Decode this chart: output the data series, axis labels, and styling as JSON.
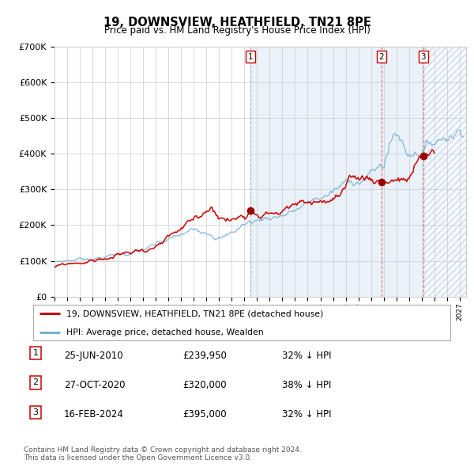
{
  "title": "19, DOWNSVIEW, HEATHFIELD, TN21 8PE",
  "subtitle": "Price paid vs. HM Land Registry's House Price Index (HPI)",
  "background_color": "#ffffff",
  "plot_bg_color": "#ffffff",
  "grid_color": "#cccccc",
  "hpi_color": "#7ab0d4",
  "price_color": "#cc0000",
  "sale_marker_color": "#990000",
  "sale1_date": 2010.49,
  "sale1_price": 239950,
  "sale2_date": 2020.83,
  "sale2_price": 320000,
  "sale3_date": 2024.12,
  "sale3_price": 395000,
  "shade_start": 2010.49,
  "shade_end": 2024.12,
  "hatch_start": 2024.12,
  "hatch_end": 2027.5,
  "xmin": 1995.0,
  "xmax": 2027.5,
  "ymin": 0,
  "ymax": 700000,
  "footnote": "Contains HM Land Registry data © Crown copyright and database right 2024.\nThis data is licensed under the Open Government Licence v3.0.",
  "legend_label1": "19, DOWNSVIEW, HEATHFIELD, TN21 8PE (detached house)",
  "legend_label2": "HPI: Average price, detached house, Wealden",
  "table_rows": [
    [
      "1",
      "25-JUN-2010",
      "£239,950",
      "32% ↓ HPI"
    ],
    [
      "2",
      "27-OCT-2020",
      "£320,000",
      "38% ↓ HPI"
    ],
    [
      "3",
      "16-FEB-2024",
      "£395,000",
      "32% ↓ HPI"
    ]
  ]
}
